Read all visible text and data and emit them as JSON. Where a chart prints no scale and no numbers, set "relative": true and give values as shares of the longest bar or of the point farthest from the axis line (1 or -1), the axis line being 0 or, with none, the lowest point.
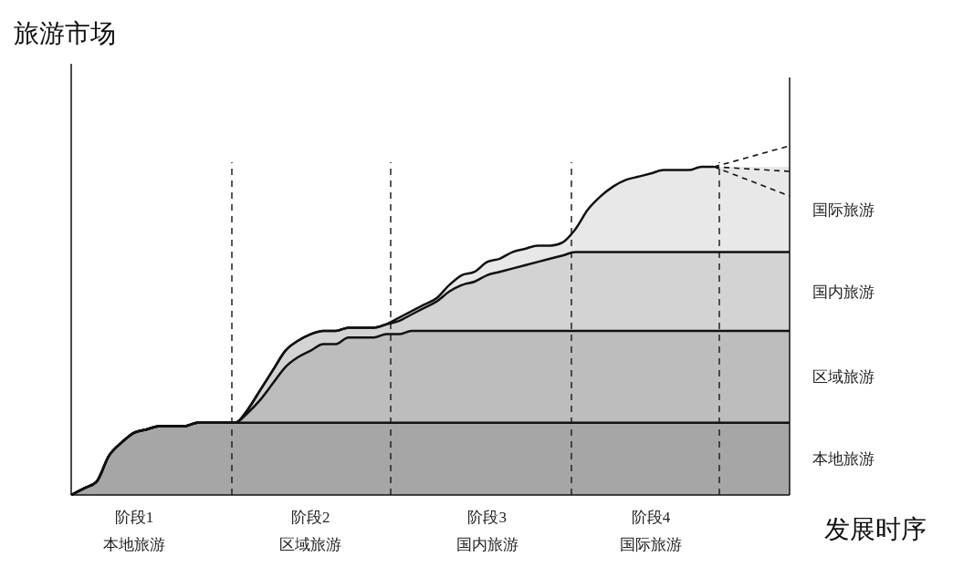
{
  "chart_data": {
    "type": "area",
    "stacked": true,
    "relative": true,
    "ylabel": "旅游市场",
    "xlabel": "发展时序",
    "categories": [
      null,
      null,
      null,
      null,
      null,
      "阶段1\n本地旅游",
      null,
      null,
      null,
      null,
      null,
      null,
      null,
      null,
      null,
      null,
      null,
      null,
      null,
      "阶段2\n区域旅游",
      null,
      null,
      null,
      null,
      null,
      null,
      null,
      null,
      null,
      null,
      null,
      null,
      null,
      "阶段3\n国内旅游",
      null,
      null,
      null,
      null,
      null,
      null,
      null,
      null,
      null,
      null,
      null,
      null,
      "阶段4\n国际旅游",
      null,
      null,
      null,
      null,
      null,
      null,
      null,
      null,
      null,
      null,
      null
    ],
    "series": [
      {
        "name": "本地旅游",
        "color": "#a6a6a6",
        "values": [
          0,
          0.02,
          0.04,
          0.12,
          0.16,
          0.19,
          0.2,
          0.21,
          0.21,
          0.21,
          0.22,
          0.22,
          0.22,
          0.22,
          0.22,
          0.22,
          0.22,
          0.22,
          0.22,
          0.22,
          0.22,
          0.22,
          0.22,
          0.22,
          0.22,
          0.22,
          0.22,
          0.22,
          0.22,
          0.22,
          0.22,
          0.22,
          0.22,
          0.22,
          0.22,
          0.22,
          0.22,
          0.22,
          0.22,
          0.22,
          0.22,
          0.22,
          0.22,
          0.22,
          0.22,
          0.22,
          0.22,
          0.22,
          0.22,
          0.22,
          0.22,
          0.22,
          0.22,
          0.22,
          0.22,
          0.22,
          0.22,
          0.22
        ]
      },
      {
        "name": "区域旅游",
        "color": "#bdbdbd",
        "values": [
          0,
          0,
          0,
          0,
          0,
          0,
          0,
          0,
          0,
          0,
          0,
          0,
          0,
          0,
          0.03,
          0.07,
          0.12,
          0.17,
          0.2,
          0.22,
          0.24,
          0.24,
          0.26,
          0.26,
          0.26,
          0.27,
          0.27,
          0.28,
          0.28,
          0.28,
          0.28,
          0.28,
          0.28,
          0.28,
          0.28,
          0.28,
          0.28,
          0.28,
          0.28,
          0.28,
          0.28,
          0.28,
          0.28,
          0.28,
          0.28,
          0.28,
          0.28,
          0.28,
          0.28,
          0.28,
          0.28,
          0.28,
          0.28,
          0.28,
          0.28,
          0.28,
          0.28,
          0.28
        ]
      },
      {
        "name": "国内旅游",
        "color": "#d3d3d3",
        "values": [
          0,
          0,
          0,
          0,
          0,
          0,
          0,
          0,
          0,
          0,
          0,
          0,
          0,
          0,
          0.01,
          0.03,
          0.04,
          0.05,
          0.05,
          0.05,
          0.04,
          0.04,
          0.03,
          0.03,
          0.03,
          0.03,
          0.04,
          0.05,
          0.07,
          0.09,
          0.12,
          0.14,
          0.15,
          0.17,
          0.18,
          0.19,
          0.2,
          0.21,
          0.22,
          0.23,
          0.24,
          0.24,
          0.24,
          0.24,
          0.24,
          0.24,
          0.24,
          0.24,
          0.24,
          0.24,
          0.24,
          0.24,
          0.24,
          0.24,
          0.24,
          0.24,
          0.24,
          0.24
        ]
      },
      {
        "name": "国际旅游",
        "color": "#e8e8e8",
        "values": [
          0,
          0,
          0,
          0,
          0,
          0,
          0,
          0,
          0,
          0,
          0,
          0,
          0,
          0,
          0,
          0,
          0,
          0,
          0,
          0,
          0,
          0,
          0,
          0,
          0,
          0,
          0.01,
          0.01,
          0.01,
          0.01,
          0.02,
          0.03,
          0.03,
          0.04,
          0.04,
          0.05,
          0.05,
          0.05,
          0.04,
          0.04,
          0.07,
          0.13,
          0.17,
          0.2,
          0.22,
          0.23,
          0.24,
          0.25,
          0.25,
          0.25,
          0.26,
          0.26,
          0.26,
          0.26,
          0.26,
          0.26,
          0.26,
          0.26
        ]
      }
    ]
  }
}
